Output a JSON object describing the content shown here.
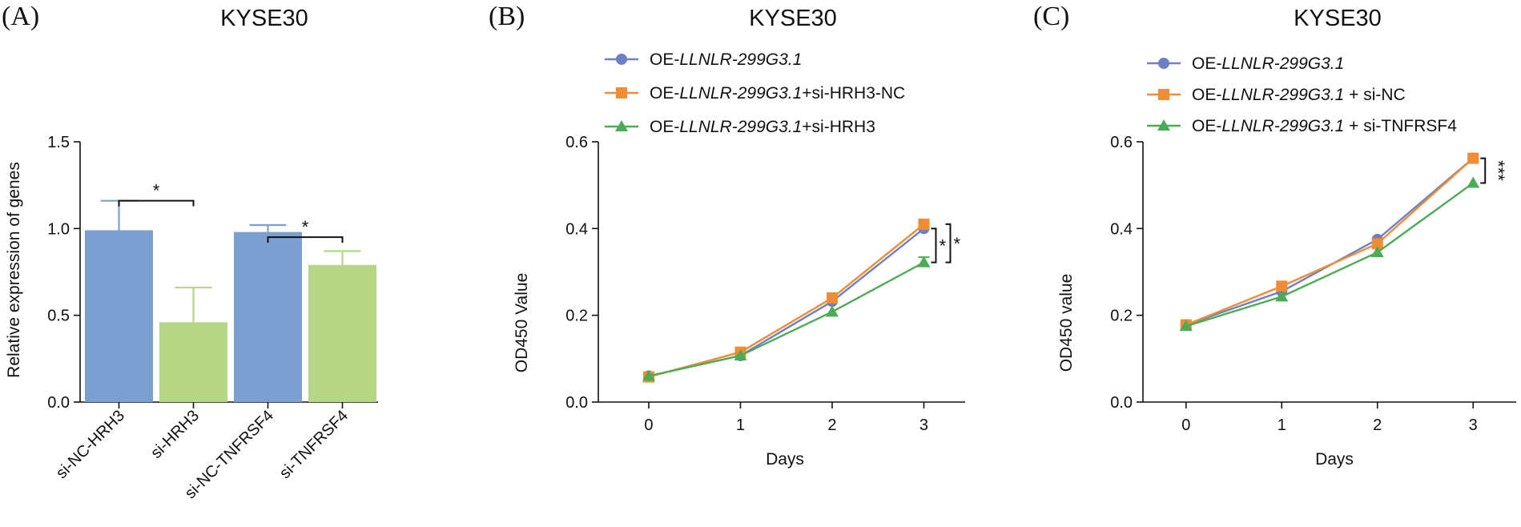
{
  "colors": {
    "blue": "#7B9FD0",
    "blue_marker": "#6F7FC4",
    "green": "#B5D685",
    "orange": "#F08C35",
    "line_green": "#4CAB55",
    "axis": "#111111"
  },
  "chart_data": [
    {
      "panel": "(A)",
      "type": "bar",
      "title": "KYSE30",
      "ylabel": "Relative expression of genes",
      "xlabel": "",
      "ylim": [
        0,
        1.5
      ],
      "yticks": [
        "0.0",
        "0.5",
        "1.0",
        "1.5"
      ],
      "categories": [
        "si-NC-HRH3",
        "si-HRH3",
        "si-NC-TNFRSF4",
        "si-TNFRSF4"
      ],
      "values": [
        0.99,
        0.46,
        0.98,
        0.79
      ],
      "errors": [
        0.17,
        0.2,
        0.04,
        0.08
      ],
      "bar_colors": [
        "blue",
        "green",
        "blue",
        "green"
      ],
      "significance": [
        {
          "from": 0,
          "to": 1,
          "level": 1.16,
          "label": "*"
        },
        {
          "from": 2,
          "to": 3,
          "level": 0.95,
          "label": "*"
        }
      ]
    },
    {
      "panel": "(B)",
      "type": "line",
      "title": "KYSE30",
      "ylabel": "OD450 Value",
      "xlabel": "Days",
      "ylim": [
        0,
        0.6
      ],
      "xlim": [
        -0.55,
        3.45
      ],
      "yticks": [
        "0.0",
        "0.2",
        "0.4",
        "0.6"
      ],
      "x": [
        0,
        1,
        2,
        3
      ],
      "xtick_labels": [
        "0",
        "1",
        "2",
        "3"
      ],
      "series": [
        {
          "prefix": "OE-",
          "italic": "LLNLR-299G3.1",
          "suffix": "",
          "values": [
            0.06,
            0.107,
            0.232,
            0.4
          ],
          "marker": "circle",
          "color": "blue_marker"
        },
        {
          "prefix": "OE-",
          "italic": "LLNLR-299G3.1",
          "suffix": "+si-HRH3-NC",
          "values": [
            0.058,
            0.115,
            0.24,
            0.41
          ],
          "marker": "square",
          "color": "orange"
        },
        {
          "prefix": "OE-",
          "italic": "LLNLR-299G3.1",
          "suffix": "+si-HRH3",
          "values": [
            0.06,
            0.107,
            0.208,
            0.322
          ],
          "marker": "triangle",
          "color": "line_green"
        }
      ],
      "end_errors": [
        0,
        0,
        0.012
      ],
      "significance": [
        {
          "top": 0.4,
          "bottom": 0.322,
          "label": "*"
        },
        {
          "top": 0.41,
          "bottom": 0.322,
          "label": "*"
        }
      ]
    },
    {
      "panel": "(C)",
      "type": "line",
      "title": "KYSE30",
      "ylabel": "OD450 value",
      "xlabel": "Days",
      "ylim": [
        0,
        0.6
      ],
      "xlim": [
        -0.45,
        3.45
      ],
      "yticks": [
        "0.0",
        "0.2",
        "0.4",
        "0.6"
      ],
      "x": [
        0,
        1,
        2,
        3
      ],
      "xtick_labels": [
        "0",
        "1",
        "2",
        "3"
      ],
      "series": [
        {
          "prefix": "OE-",
          "italic": "LLNLR-299G3.1",
          "suffix": "",
          "values": [
            0.178,
            0.255,
            0.375,
            0.562
          ],
          "marker": "circle",
          "color": "blue_marker"
        },
        {
          "prefix": "OE-",
          "italic": "LLNLR-299G3.1",
          "suffix": " + si-NC",
          "values": [
            0.178,
            0.267,
            0.365,
            0.562
          ],
          "marker": "square",
          "color": "orange"
        },
        {
          "prefix": "OE-",
          "italic": "LLNLR-299G3.1",
          "suffix": " + si-TNFRSF4",
          "values": [
            0.175,
            0.243,
            0.345,
            0.505
          ],
          "marker": "triangle",
          "color": "line_green"
        }
      ],
      "end_errors": [
        0,
        0,
        0
      ],
      "significance": [
        {
          "top": 0.562,
          "bottom": 0.505,
          "label": "***"
        }
      ]
    }
  ]
}
